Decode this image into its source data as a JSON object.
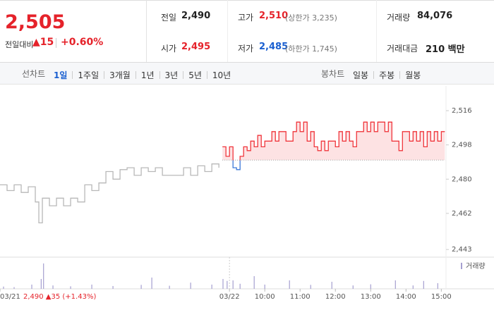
{
  "quote": {
    "price": "2,505",
    "change_label": "전일대비",
    "change": "▲15",
    "change_rate": "+0.60%"
  },
  "summary": [
    {
      "label": "전일",
      "value": "2,490",
      "color": "#222222"
    },
    {
      "label": "고가",
      "value": "2,510",
      "note": "(상한가 3,235)",
      "color": "#e5222a"
    },
    {
      "label": "거래량",
      "value": "84,076",
      "color": "#222222"
    },
    {
      "label": "시가",
      "value": "2,495",
      "color": "#e5222a"
    },
    {
      "label": "저가",
      "value": "2,485",
      "note": "(하한가 1,745)",
      "color": "#1a5fd0"
    },
    {
      "label": "거래대금",
      "value": "210 백만",
      "color": "#222222"
    }
  ],
  "tabs": {
    "line_label": "선차트",
    "line_periods": [
      "1일",
      "1주일",
      "3개월",
      "1년",
      "3년",
      "5년",
      "10년"
    ],
    "candle_label": "봉차트",
    "candle_periods": [
      "일봉",
      "주봉",
      "월봉"
    ]
  },
  "chart_data": {
    "type": "line",
    "xlim": [
      0,
      758
    ],
    "ylim": [
      2439,
      2529
    ],
    "yticks": [
      {
        "value": 2516,
        "label": "2,516"
      },
      {
        "value": 2498,
        "label": "2,498"
      },
      {
        "value": 2480,
        "label": "2,480"
      },
      {
        "value": 2462,
        "label": "2,462"
      },
      {
        "value": 2443,
        "label": "2,443"
      }
    ],
    "xticks": [
      {
        "value": 0,
        "label": "03/21"
      },
      {
        "value": 390,
        "label": "03/22"
      },
      {
        "value": 450,
        "label": "10:00"
      },
      {
        "value": 510,
        "label": "11:00"
      },
      {
        "value": 570,
        "label": "12:00"
      },
      {
        "value": 630,
        "label": "13:00"
      },
      {
        "value": 690,
        "label": "14:00"
      },
      {
        "value": 750,
        "label": "15:00"
      }
    ],
    "annotation": "2,490 ▲35 (+1.43%)",
    "baseline": 2490,
    "series": [
      {
        "color": "#b8b8b8",
        "x": [
          0,
          12,
          24,
          36,
          48,
          60,
          66,
          72,
          84,
          96,
          108,
          120,
          132,
          144,
          156,
          168,
          180,
          192,
          204,
          216,
          228,
          240,
          252,
          264,
          276,
          288,
          300,
          312,
          324,
          336,
          348,
          360,
          372
        ],
        "values": [
          2477,
          2474,
          2477,
          2473,
          2476,
          2468,
          2457,
          2470,
          2466,
          2470,
          2466,
          2470,
          2468,
          2477,
          2474,
          2478,
          2484,
          2480,
          2485,
          2486,
          2482,
          2486,
          2484,
          2486,
          2482,
          2482,
          2482,
          2486,
          2482,
          2487,
          2484,
          2488,
          2486
        ]
      },
      {
        "color": "#f0353b",
        "below_color": "#3b78d8",
        "fill": "#fde2e3",
        "x": [
          378,
          384,
          390,
          396,
          402,
          408,
          414,
          420,
          426,
          432,
          438,
          444,
          450,
          456,
          462,
          468,
          474,
          480,
          486,
          492,
          498,
          504,
          510,
          516,
          522,
          528,
          534,
          540,
          546,
          552,
          558,
          564,
          570,
          576,
          582,
          588,
          594,
          600,
          606,
          612,
          618,
          624,
          630,
          636,
          642,
          648,
          654,
          660,
          666,
          672,
          678,
          684,
          690,
          696,
          702,
          708,
          714,
          720,
          726,
          732,
          738,
          744,
          750,
          756
        ],
        "values": [
          2497,
          2492,
          2497,
          2486,
          2485,
          2492,
          2497,
          2495,
          2500,
          2497,
          2503,
          2497,
          2500,
          2500,
          2505,
          2500,
          2505,
          2505,
          2500,
          2500,
          2505,
          2510,
          2505,
          2510,
          2500,
          2505,
          2497,
          2495,
          2500,
          2495,
          2500,
          2500,
          2497,
          2505,
          2500,
          2505,
          2500,
          2497,
          2505,
          2505,
          2510,
          2505,
          2510,
          2505,
          2510,
          2510,
          2505,
          2510,
          2500,
          2500,
          2495,
          2505,
          2505,
          2500,
          2505,
          2500,
          2505,
          2497,
          2505,
          2500,
          2505,
          2500,
          2505,
          2505
        ]
      }
    ],
    "volume": {
      "name": "거래량",
      "color": "#a59fd0",
      "lim": [
        0,
        10000
      ],
      "x": [
        6,
        24,
        54,
        70,
        74,
        90,
        120,
        156,
        192,
        240,
        258,
        288,
        324,
        360,
        379,
        386,
        396,
        408,
        432,
        450,
        492,
        528,
        564,
        600,
        630,
        672,
        702,
        720,
        744
      ],
      "values": [
        800,
        600,
        1500,
        3500,
        9000,
        1200,
        900,
        1500,
        1000,
        1400,
        4000,
        1100,
        2200,
        1500,
        3500,
        2800,
        3000,
        1800,
        4500,
        1500,
        3000,
        1400,
        2500,
        1200,
        1600,
        3000,
        1200,
        2800,
        2000
      ]
    }
  }
}
